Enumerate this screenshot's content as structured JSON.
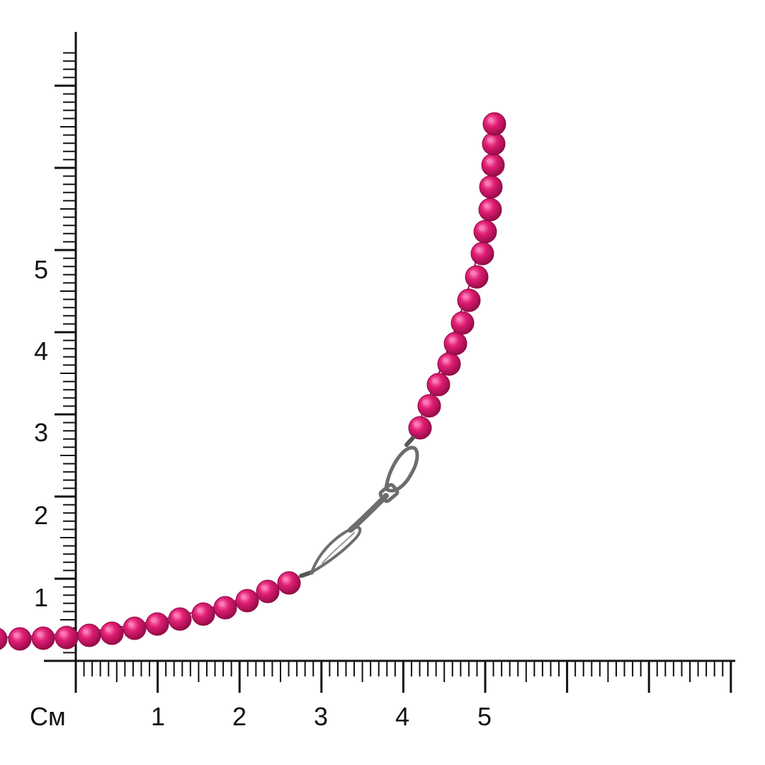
{
  "ruler": {
    "unit_label": "См",
    "x_labels": [
      "1",
      "2",
      "3",
      "4",
      "5"
    ],
    "y_labels": [
      "1",
      "2",
      "3",
      "4",
      "5"
    ],
    "x_cm_span": 8,
    "y_cm_span": 7,
    "minor_divisions_per_cm": 10
  },
  "colors": {
    "bead": "#d81668",
    "bead_dark": "#8e0a44",
    "bead_light": "#ff7fb8",
    "clasp": "#6d6d6d",
    "ruler_line": "#111111"
  },
  "icons": {
    "necklace": "beaded-necklace-icon",
    "clasp": "lobster-clasp-icon"
  }
}
